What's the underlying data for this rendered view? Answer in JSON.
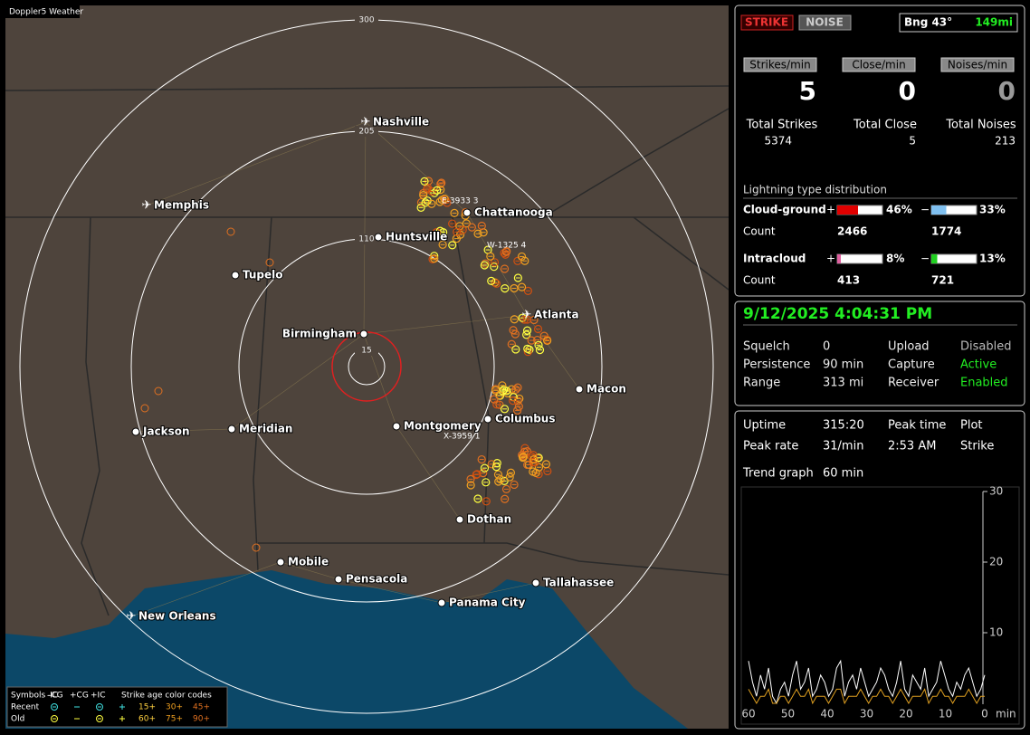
{
  "map": {
    "title": "Doppler5 Weather",
    "ring_labels": [
      "300",
      "205",
      "110",
      "15"
    ],
    "cities": [
      "Nashville",
      "Chattanooga",
      "Memphis",
      "Huntsville",
      "Tupelo",
      "Birmingham",
      "Atlanta",
      "Macon",
      "Columbus",
      "Montgomery",
      "Meridian",
      "Jackson",
      "Dothan",
      "Mobile",
      "Pensacola",
      "Tallahassee",
      "Panama City",
      "New Orleans"
    ],
    "markers": [
      "E-3933 3",
      "W-1325 4",
      "X-3959 1"
    ]
  },
  "legend": {
    "header": [
      "Symbols -CG",
      "-IC",
      "+CG",
      "+IC",
      "Strike age color codes"
    ],
    "rows": [
      {
        "label": "Recent",
        "ages": [
          "15+",
          "30+",
          "45+"
        ]
      },
      {
        "label": "Old",
        "ages": [
          "60+",
          "75+",
          "90+"
        ]
      }
    ]
  },
  "status": {
    "mode_buttons": [
      "STRIKE",
      "NOISE"
    ],
    "bearing": "Bng 43°",
    "distance": "149mi"
  },
  "rates": [
    {
      "label": "Strikes/min",
      "value": 5
    },
    {
      "label": "Close/min",
      "value": 0
    },
    {
      "label": "Noises/min",
      "value": 0
    }
  ],
  "totals": [
    {
      "label": "Total Strikes",
      "value": 5374
    },
    {
      "label": "Total Close",
      "value": 5
    },
    {
      "label": "Total Noises",
      "value": 213
    }
  ],
  "distribution": {
    "title": "Lightning type distribution",
    "rows": [
      {
        "label": "Cloud-ground",
        "pos_sign": "+",
        "pos_percent": 46,
        "pos_percent_label": "46%",
        "neg_sign": "−",
        "neg_percent": 33,
        "neg_percent_label": "33%",
        "count_label": "Count",
        "pos_count": 2466,
        "neg_count": 1774
      },
      {
        "label": "Intracloud",
        "pos_sign": "+",
        "pos_percent": 8,
        "pos_percent_label": "8%",
        "neg_sign": "−",
        "neg_percent": 13,
        "neg_percent_label": "13%",
        "count_label": "Count",
        "pos_count": 413,
        "neg_count": 721
      }
    ]
  },
  "clock": {
    "datetime": "9/12/2025 4:04:31 PM",
    "settings": [
      [
        "Squelch",
        "0",
        "Upload",
        "Disabled"
      ],
      [
        "Persistence",
        "90 min",
        "Capture",
        "Active"
      ],
      [
        "Range",
        "313 mi",
        "Receiver",
        "Enabled"
      ]
    ]
  },
  "stats": [
    [
      "Uptime",
      "315:20",
      "Peak time",
      "Plot"
    ],
    [
      "Peak rate",
      "31/min",
      "2:53 AM",
      "Strike"
    ],
    [
      "Trend graph",
      "60 min"
    ]
  ],
  "trend": {
    "ylim": [
      0,
      30
    ],
    "yticks": [
      10,
      20,
      30
    ],
    "xlim": [
      60,
      0
    ],
    "xticks": [
      60,
      50,
      40,
      30,
      20,
      10,
      0
    ],
    "x_unit": "min",
    "series": [
      {
        "color": "#ffffff",
        "values": [
          6,
          3,
          1,
          4,
          2,
          5,
          1,
          0,
          2,
          3,
          1,
          4,
          6,
          2,
          3,
          5,
          1,
          2,
          4,
          3,
          1,
          2,
          5,
          6,
          1,
          3,
          4,
          2,
          5,
          3,
          1,
          2,
          3,
          5,
          4,
          2,
          1,
          3,
          6,
          2,
          1,
          4,
          3,
          2,
          5,
          1,
          2,
          3,
          6,
          4,
          2,
          1,
          3,
          2,
          4,
          5,
          3,
          1,
          2,
          4
        ]
      },
      {
        "color": "#e0a020",
        "values": [
          2,
          1,
          0,
          1,
          1,
          2,
          0,
          0,
          1,
          1,
          0,
          1,
          2,
          1,
          1,
          2,
          0,
          1,
          1,
          1,
          0,
          1,
          2,
          2,
          0,
          1,
          1,
          1,
          2,
          1,
          0,
          1,
          1,
          2,
          1,
          1,
          0,
          1,
          2,
          1,
          0,
          1,
          1,
          1,
          2,
          0,
          1,
          1,
          2,
          1,
          1,
          0,
          1,
          1,
          1,
          2,
          1,
          0,
          1,
          1
        ]
      }
    ]
  }
}
